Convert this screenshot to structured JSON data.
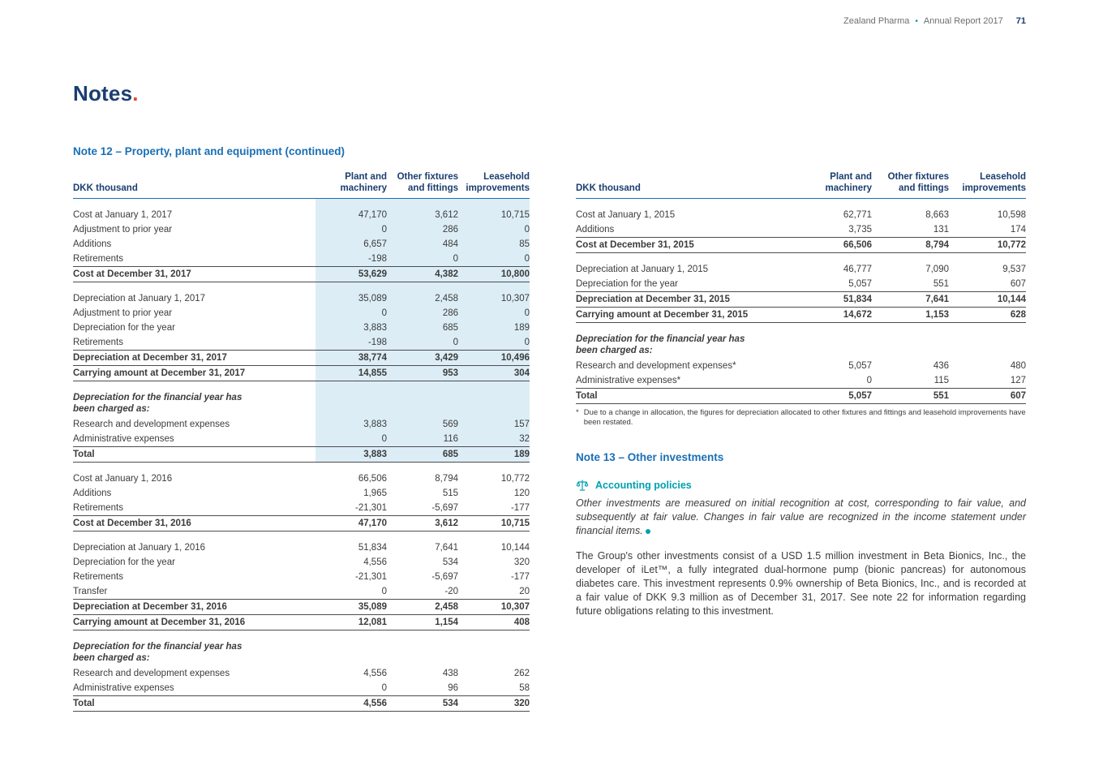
{
  "header": {
    "brand": "Zealand Pharma",
    "bullet": "•",
    "report": "Annual Report 2017",
    "page_number": "71"
  },
  "title": {
    "text": "Notes",
    "period": "."
  },
  "note12": {
    "heading": "Note 12 – Property, plant and equipment (continued)"
  },
  "left_table": {
    "unit_label": "DKK thousand",
    "col_headers": [
      "Plant and machinery",
      "Other fixtures and fittings",
      "Leasehold improvements"
    ],
    "rows": [
      {
        "t": "spacer",
        "label": "",
        "v": [
          "",
          "",
          ""
        ],
        "shaded": true
      },
      {
        "t": "data",
        "label": "Cost at January 1, 2017",
        "v": [
          "47,170",
          "3,612",
          "10,715"
        ],
        "shaded": true
      },
      {
        "t": "data",
        "label": "Adjustment to prior year",
        "v": [
          "0",
          "286",
          "0"
        ],
        "shaded": true
      },
      {
        "t": "data",
        "label": "Additions",
        "v": [
          "6,657",
          "484",
          "85"
        ],
        "shaded": true
      },
      {
        "t": "data",
        "label": "Retirements",
        "v": [
          "-198",
          "0",
          "0"
        ],
        "shaded": true
      },
      {
        "t": "totalend",
        "label": "Cost at December 31, 2017",
        "v": [
          "53,629",
          "4,382",
          "10,800"
        ],
        "shaded": true
      },
      {
        "t": "spacer",
        "label": "",
        "v": [
          "",
          "",
          ""
        ],
        "shaded": true
      },
      {
        "t": "data",
        "label": "Depreciation at January 1, 2017",
        "v": [
          "35,089",
          "2,458",
          "10,307"
        ],
        "shaded": true
      },
      {
        "t": "data",
        "label": "Adjustment to prior year",
        "v": [
          "0",
          "286",
          "0"
        ],
        "shaded": true
      },
      {
        "t": "data",
        "label": "Depreciation for the year",
        "v": [
          "3,883",
          "685",
          "189"
        ],
        "shaded": true
      },
      {
        "t": "data",
        "label": "Retirements",
        "v": [
          "-198",
          "0",
          "0"
        ],
        "shaded": true
      },
      {
        "t": "total",
        "label": "Depreciation at December 31, 2017",
        "v": [
          "38,774",
          "3,429",
          "10,496"
        ],
        "shaded": true
      },
      {
        "t": "totalend",
        "label": "Carrying amount at December 31, 2017",
        "v": [
          "14,855",
          "953",
          "304"
        ],
        "shaded": true
      },
      {
        "t": "spacer",
        "label": "",
        "v": [
          "",
          "",
          ""
        ],
        "shaded": true
      },
      {
        "t": "section",
        "label": "Depreciation for the financial year has been charged as:",
        "v": [
          "",
          "",
          ""
        ],
        "shaded": true
      },
      {
        "t": "data",
        "label": "Research and development expenses",
        "v": [
          "3,883",
          "569",
          "157"
        ],
        "shaded": true
      },
      {
        "t": "data",
        "label": "Administrative expenses",
        "v": [
          "0",
          "116",
          "32"
        ],
        "shaded": true
      },
      {
        "t": "totalend",
        "label": "Total",
        "v": [
          "3,883",
          "685",
          "189"
        ],
        "shaded": true
      },
      {
        "t": "spacer",
        "label": "",
        "v": [
          "",
          "",
          ""
        ],
        "shaded": false
      },
      {
        "t": "data",
        "label": "Cost at January 1, 2016",
        "v": [
          "66,506",
          "8,794",
          "10,772"
        ],
        "shaded": false
      },
      {
        "t": "data",
        "label": "Additions",
        "v": [
          "1,965",
          "515",
          "120"
        ],
        "shaded": false
      },
      {
        "t": "data",
        "label": "Retirements",
        "v": [
          "-21,301",
          "-5,697",
          "-177"
        ],
        "shaded": false
      },
      {
        "t": "totalend",
        "label": "Cost at December 31, 2016",
        "v": [
          "47,170",
          "3,612",
          "10,715"
        ],
        "shaded": false
      },
      {
        "t": "spacer",
        "label": "",
        "v": [
          "",
          "",
          ""
        ],
        "shaded": false
      },
      {
        "t": "data",
        "label": "Depreciation at January 1, 2016",
        "v": [
          "51,834",
          "7,641",
          "10,144"
        ],
        "shaded": false
      },
      {
        "t": "data",
        "label": "Depreciation for the year",
        "v": [
          "4,556",
          "534",
          "320"
        ],
        "shaded": false
      },
      {
        "t": "data",
        "label": "Retirements",
        "v": [
          "-21,301",
          "-5,697",
          "-177"
        ],
        "shaded": false
      },
      {
        "t": "data",
        "label": "Transfer",
        "v": [
          "0",
          "-20",
          "20"
        ],
        "shaded": false
      },
      {
        "t": "total",
        "label": "Depreciation at December 31, 2016",
        "v": [
          "35,089",
          "2,458",
          "10,307"
        ],
        "shaded": false
      },
      {
        "t": "totalend",
        "label": "Carrying amount at December 31, 2016",
        "v": [
          "12,081",
          "1,154",
          "408"
        ],
        "shaded": false
      },
      {
        "t": "spacer",
        "label": "",
        "v": [
          "",
          "",
          ""
        ],
        "shaded": false
      },
      {
        "t": "section",
        "label": "Depreciation for the financial year has been charged as:",
        "v": [
          "",
          "",
          ""
        ],
        "shaded": false
      },
      {
        "t": "data",
        "label": "Research and development expenses",
        "v": [
          "4,556",
          "438",
          "262"
        ],
        "shaded": false
      },
      {
        "t": "data",
        "label": "Administrative expenses",
        "v": [
          "0",
          "96",
          "58"
        ],
        "shaded": false
      },
      {
        "t": "totalend",
        "label": "Total",
        "v": [
          "4,556",
          "534",
          "320"
        ],
        "shaded": false
      }
    ]
  },
  "right_table": {
    "unit_label": "DKK thousand",
    "col_headers": [
      "Plant and machinery",
      "Other fixtures and fittings",
      "Leasehold improvements"
    ],
    "rows": [
      {
        "t": "spacer",
        "label": "",
        "v": [
          "",
          "",
          ""
        ]
      },
      {
        "t": "data",
        "label": "Cost at January 1, 2015",
        "v": [
          "62,771",
          "8,663",
          "10,598"
        ]
      },
      {
        "t": "data",
        "label": "Additions",
        "v": [
          "3,735",
          "131",
          "174"
        ]
      },
      {
        "t": "totalend",
        "label": "Cost at December 31, 2015",
        "v": [
          "66,506",
          "8,794",
          "10,772"
        ]
      },
      {
        "t": "spacer",
        "label": "",
        "v": [
          "",
          "",
          ""
        ]
      },
      {
        "t": "data",
        "label": "Depreciation at January 1, 2015",
        "v": [
          "46,777",
          "7,090",
          "9,537"
        ]
      },
      {
        "t": "data",
        "label": "Depreciation for the year",
        "v": [
          "5,057",
          "551",
          "607"
        ]
      },
      {
        "t": "total",
        "label": "Depreciation at December 31, 2015",
        "v": [
          "51,834",
          "7,641",
          "10,144"
        ]
      },
      {
        "t": "totalend",
        "label": "Carrying amount at December 31, 2015",
        "v": [
          "14,672",
          "1,153",
          "628"
        ]
      },
      {
        "t": "spacer",
        "label": "",
        "v": [
          "",
          "",
          ""
        ]
      },
      {
        "t": "section",
        "label": "Depreciation for the financial year has been charged as:",
        "v": [
          "",
          "",
          ""
        ]
      },
      {
        "t": "data",
        "label": "Research and development expenses*",
        "v": [
          "5,057",
          "436",
          "480"
        ]
      },
      {
        "t": "data",
        "label": "Administrative expenses*",
        "v": [
          "0",
          "115",
          "127"
        ]
      },
      {
        "t": "totalend",
        "label": "Total",
        "v": [
          "5,057",
          "551",
          "607"
        ]
      }
    ],
    "footnote_marker": "*",
    "footnote": "Due to a change in allocation, the figures for depreciation allocated to other fixtures and fittings and leasehold improvements have been restated."
  },
  "note13": {
    "heading": "Note 13 – Other investments",
    "accounting_policies_label": "Accounting policies",
    "policy_text": "Other investments are measured on initial recognition at cost, corresponding to fair value, and subsequently at fair value. Changes in fair value are recognized in the income statement under financial items.",
    "body_text": "The Group's other investments consist of a USD 1.5 million investment in Beta Bionics, Inc., the developer of iLet™, a fully integrated dual-hormone pump (bionic pancreas) for autonomous diabetes care. This investment represents 0.9% ownership of Beta Bionics, Inc., and is recorded at a fair value of DKK 9.3 million as of December 31, 2017. See note 22 for information regarding future obligations relating to this investment."
  },
  "colors": {
    "navy": "#1b3e6f",
    "note_blue": "#1a6fb5",
    "teal": "#00a0b0",
    "accent_red": "#e8432d",
    "table_shading": "#dcedf6"
  }
}
